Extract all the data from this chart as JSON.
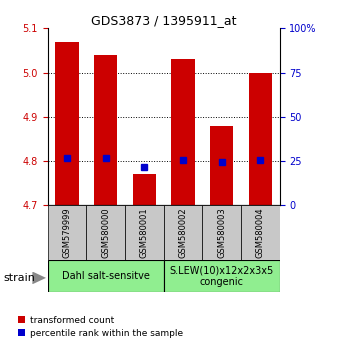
{
  "title": "GDS3873 / 1395911_at",
  "samples": [
    "GSM579999",
    "GSM580000",
    "GSM580001",
    "GSM580002",
    "GSM580003",
    "GSM580004"
  ],
  "red_values": [
    5.07,
    5.04,
    4.77,
    5.03,
    4.88,
    5.0
  ],
  "blue_values": [
    4.806,
    4.806,
    4.787,
    4.803,
    4.798,
    4.803
  ],
  "y_min": 4.7,
  "y_max": 5.1,
  "y_ticks": [
    4.7,
    4.8,
    4.9,
    5.0,
    5.1
  ],
  "right_ticks": [
    0,
    25,
    50,
    75,
    100
  ],
  "right_tick_labels": [
    "0",
    "25",
    "50",
    "75",
    "100%"
  ],
  "group1_label": "Dahl salt-sensitve",
  "group2_label": "S.LEW(10)x12x2x3x5\ncongenic",
  "group1_indices": [
    0,
    1,
    2
  ],
  "group2_indices": [
    3,
    4,
    5
  ],
  "bar_base": 4.7,
  "red_color": "#cc0000",
  "blue_color": "#0000cc",
  "group_color": "#90EE90",
  "gray_color": "#c8c8c8",
  "bar_width": 0.6,
  "legend_red_label": "transformed count",
  "legend_blue_label": "percentile rank within the sample",
  "strain_label": "strain",
  "left_tick_color": "#cc0000",
  "right_tick_color": "#0000cc",
  "title_fontsize": 9,
  "tick_fontsize": 7,
  "sample_fontsize": 6,
  "group_fontsize": 7,
  "legend_fontsize": 6.5,
  "strain_fontsize": 8
}
